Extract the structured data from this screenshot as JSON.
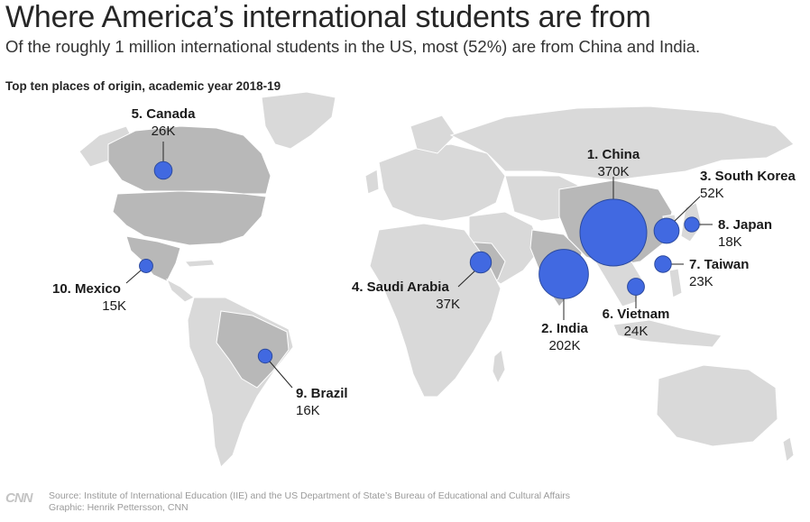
{
  "header": {
    "title": "Where America’s international students are from",
    "subtitle": "Of the roughly 1 million international students in the US, most (52%) are from China and India.",
    "map_label": "Top ten places of origin, academic year 2018-19"
  },
  "map_data": {
    "unit": "students",
    "places": [
      {
        "rank": "1. China",
        "name": "China",
        "value": 370000,
        "display": "370K"
      },
      {
        "rank": "2. India",
        "name": "India",
        "value": 202000,
        "display": "202K"
      },
      {
        "rank": "3. South Korea",
        "name": "South Korea",
        "value": 52000,
        "display": "52K"
      },
      {
        "rank": "4. Saudi Arabia",
        "name": "Saudi Arabia",
        "value": 37000,
        "display": "37K"
      },
      {
        "rank": "5. Canada",
        "name": "Canada",
        "value": 26000,
        "display": "26K"
      },
      {
        "rank": "6. Vietnam",
        "name": "Vietnam",
        "value": 24000,
        "display": "24K"
      },
      {
        "rank": "7. Taiwan",
        "name": "Taiwan",
        "value": 23000,
        "display": "23K"
      },
      {
        "rank": "8. Japan",
        "name": "Japan",
        "value": 18000,
        "display": "18K"
      },
      {
        "rank": "9. Brazil",
        "name": "Brazil",
        "value": 16000,
        "display": "16K"
      },
      {
        "rank": "10. Mexico",
        "name": "Mexico",
        "value": 15000,
        "display": "15K"
      }
    ],
    "colors": {
      "bubble": "#4169e1",
      "land": "#d9d9d9",
      "highlight_land": "#b8b8b8"
    }
  },
  "footer": {
    "logo": "CNN",
    "source": "Source: Institute of International Education (IIE) and the US Department of State’s Bureau of Educational and Cultural Affairs",
    "credit": "Graphic: Henrik Pettersson, CNN"
  }
}
